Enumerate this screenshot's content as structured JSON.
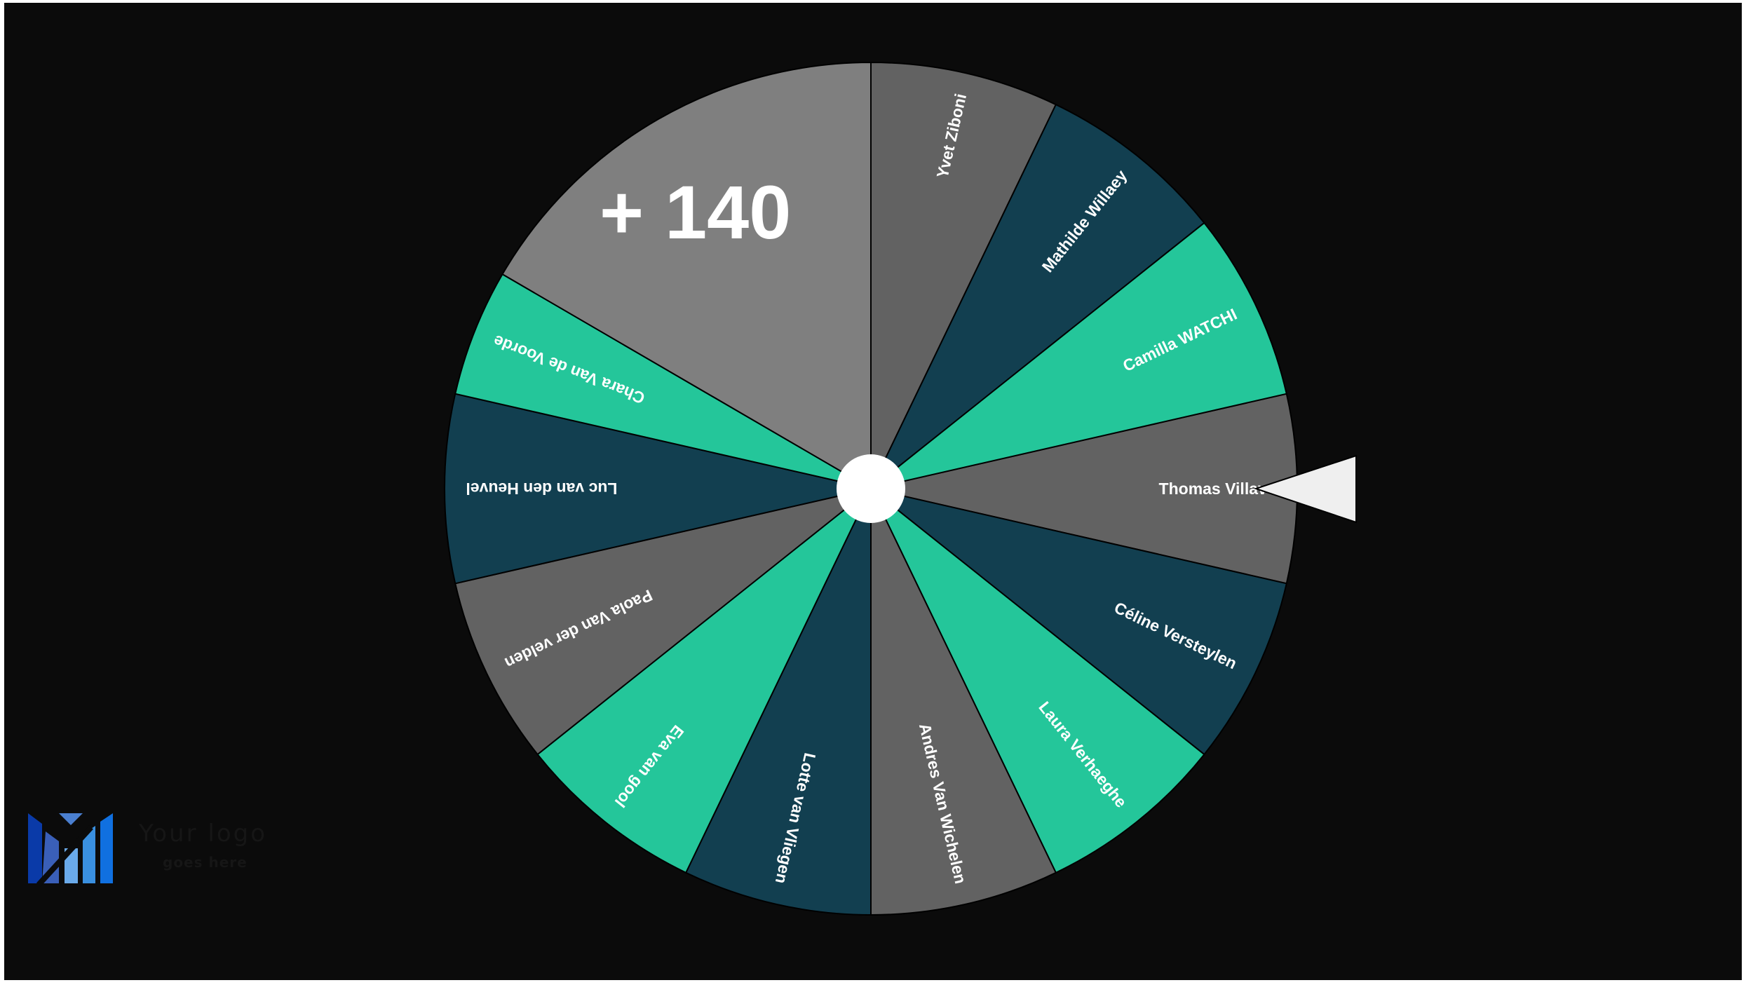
{
  "wheel": {
    "hidden_count_label": "+ 140",
    "entries": [
      {
        "name": "Thomas Villave",
        "color": "#626262"
      },
      {
        "name": "Céline Versteylen",
        "color": "#123f50"
      },
      {
        "name": "Laura Verhaeghe",
        "color": "#24c69a"
      },
      {
        "name": "Andres Van Wichelen",
        "color": "#626262"
      },
      {
        "name": "Lotte van Vliegen",
        "color": "#123f50"
      },
      {
        "name": "Eva van gool",
        "color": "#24c69a"
      },
      {
        "name": "Paola Van der velden",
        "color": "#626262"
      },
      {
        "name": "Luc van den Heuvel",
        "color": "#123f50"
      },
      {
        "name": "Chara Van de Voorde",
        "color": "#24c69a"
      },
      {
        "name": "",
        "color": "#7f7f7f"
      },
      {
        "name": "Yvet Ziboni",
        "color": "#626262"
      },
      {
        "name": "Mathilde Willaey",
        "color": "#123f50"
      },
      {
        "name": "Camilla WATCHI",
        "color": "#24c69a"
      }
    ],
    "hub_color": "#ffffff",
    "pointer_color": "#efefef"
  },
  "logo": {
    "line1": "Your logo",
    "line2": "goes here"
  }
}
